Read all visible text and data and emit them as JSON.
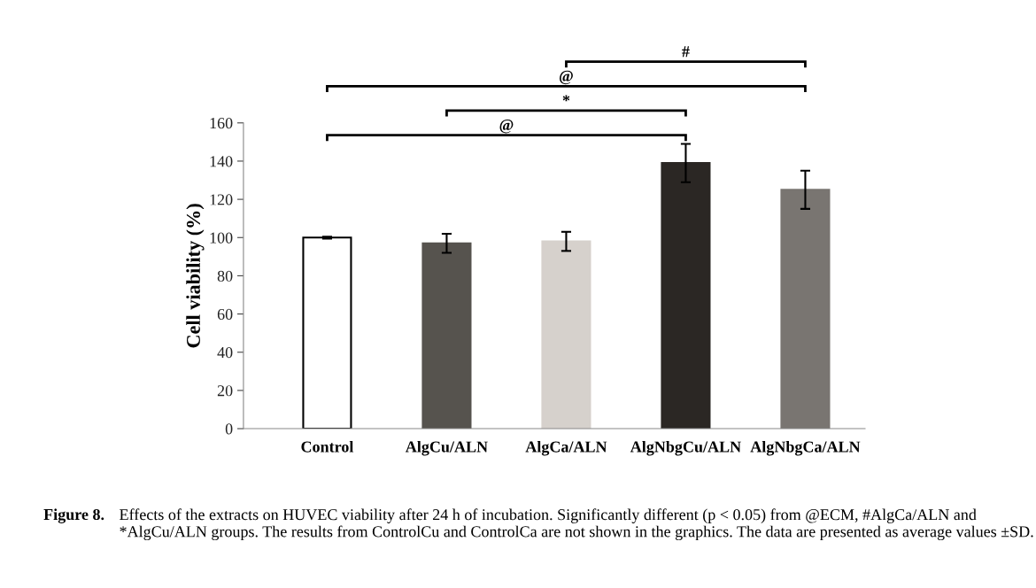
{
  "chart_data": {
    "type": "bar",
    "ylabel": "Cell viability (%)",
    "categories": [
      "Control",
      "AlgCu/ALN",
      "AlgCa/ALN",
      "AlgNbgCu/ALN",
      "AlgNbgCa/ALN"
    ],
    "values": [
      100,
      97,
      98,
      139,
      125
    ],
    "errors": [
      0.5,
      5,
      5,
      10,
      10
    ],
    "colors": [
      "#ffffff",
      "#56534e",
      "#d6d1cc",
      "#2b2724",
      "#797571"
    ],
    "ylim": [
      0,
      160
    ],
    "yticks": [
      0,
      20,
      40,
      60,
      80,
      100,
      120,
      140,
      160
    ],
    "grid": false,
    "annotations": [
      "@",
      "*",
      "@",
      "#",
      "Figure 8.",
      "Effects of the extracts on HUVEC viability after 24 h of incubation. Significantly different (p < 0.05) from @ECM, #AlgCa/ALN and *AlgCu/ALN groups. The results from ControlCu and ControlCa are not shown in the graphics. The data are presented as average values ±SD."
    ]
  }
}
